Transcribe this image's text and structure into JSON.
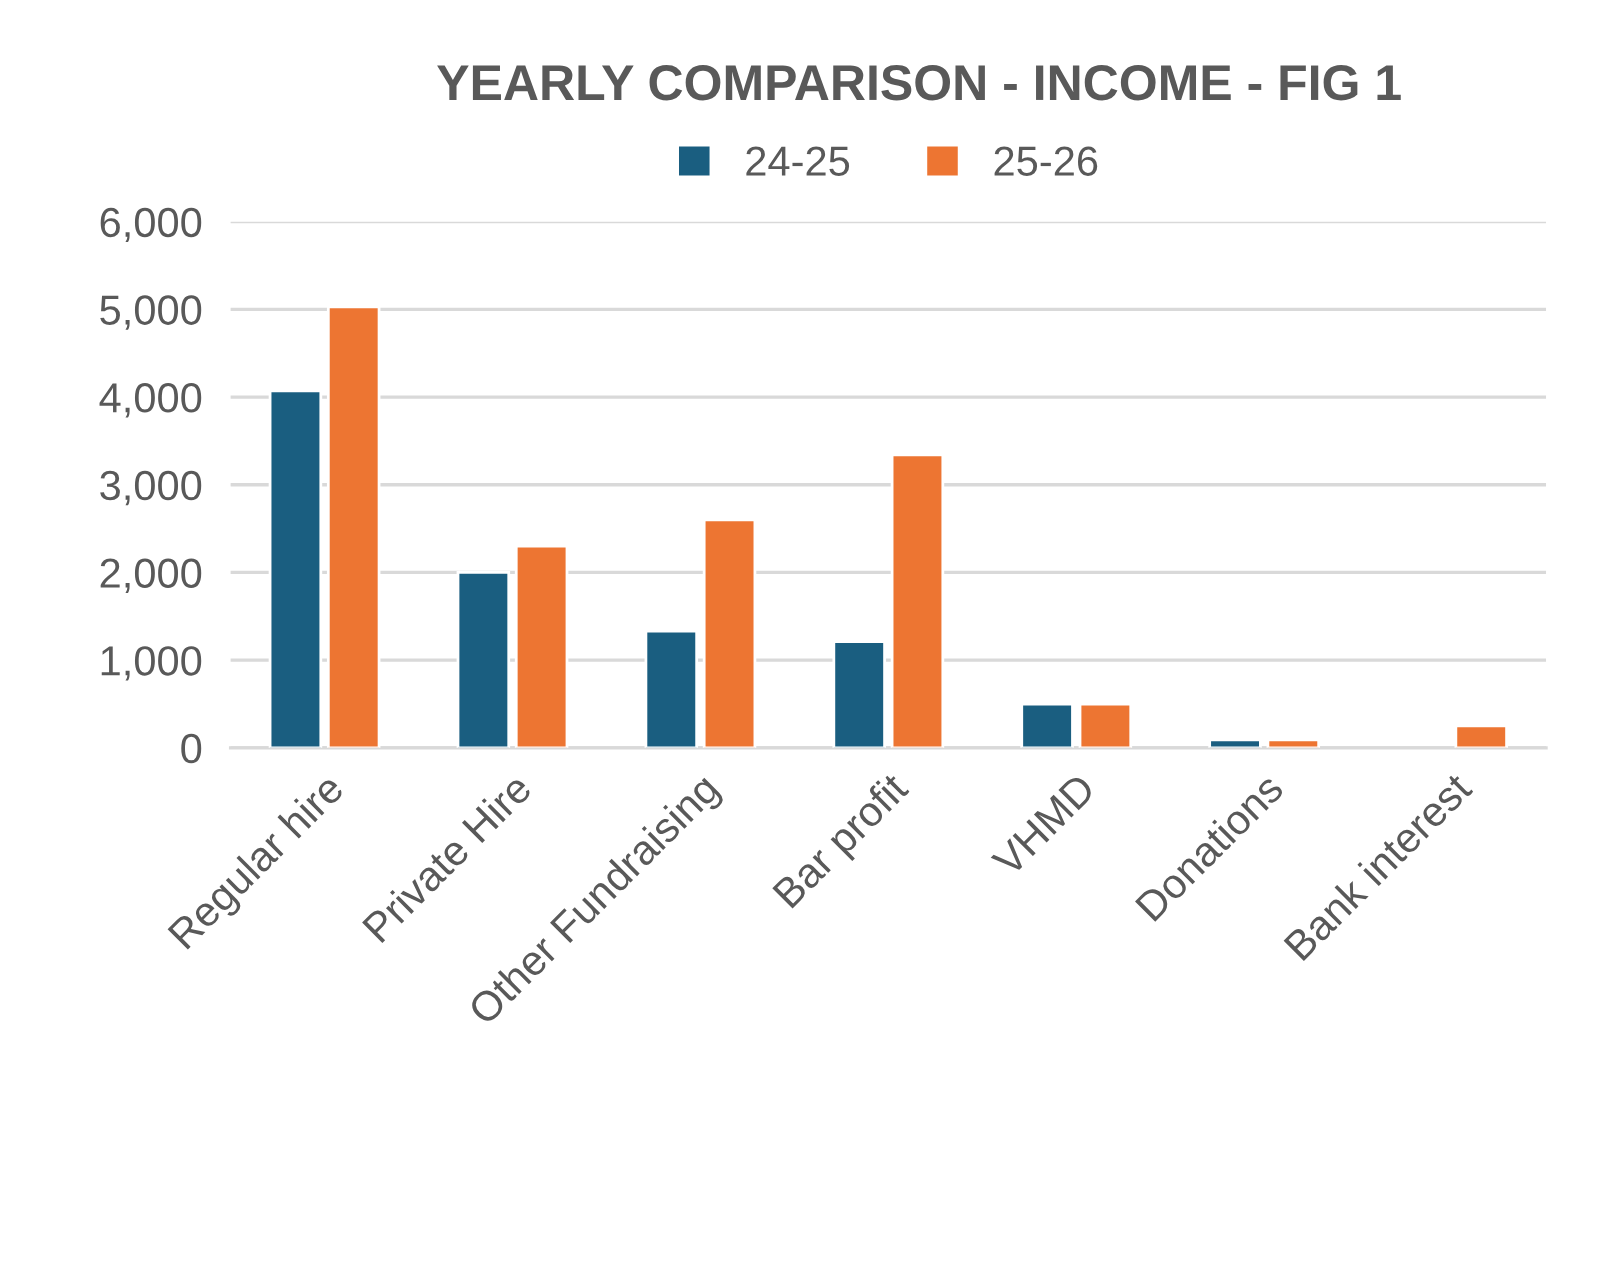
{
  "chart_data": {
    "type": "bar",
    "title": "YEARLY COMPARISON - INCOME - FIG 1",
    "categories": [
      "Regular hire",
      "Private Hire",
      "Other Fundraising",
      "Bar profit",
      "VHMD",
      "Donations",
      "Bank interest"
    ],
    "series": [
      {
        "name": "24-25",
        "color": "#1a5e80",
        "values": [
          4070,
          2000,
          1330,
          1210,
          500,
          90,
          null
        ]
      },
      {
        "name": "25-26",
        "color": "#ed7532",
        "values": [
          5030,
          2300,
          2600,
          3340,
          500,
          90,
          250
        ]
      }
    ],
    "ylim": [
      0,
      6000
    ],
    "yticks": [
      {
        "value": 0,
        "label": "0"
      },
      {
        "value": 1000,
        "label": "1,000"
      },
      {
        "value": 2000,
        "label": "2,000"
      },
      {
        "value": 3000,
        "label": "3,000"
      },
      {
        "value": 4000,
        "label": "4,000"
      },
      {
        "value": 5000,
        "label": "5,000"
      },
      {
        "value": 6000,
        "label": "6,000"
      }
    ],
    "grid": "y",
    "legend": "top"
  }
}
